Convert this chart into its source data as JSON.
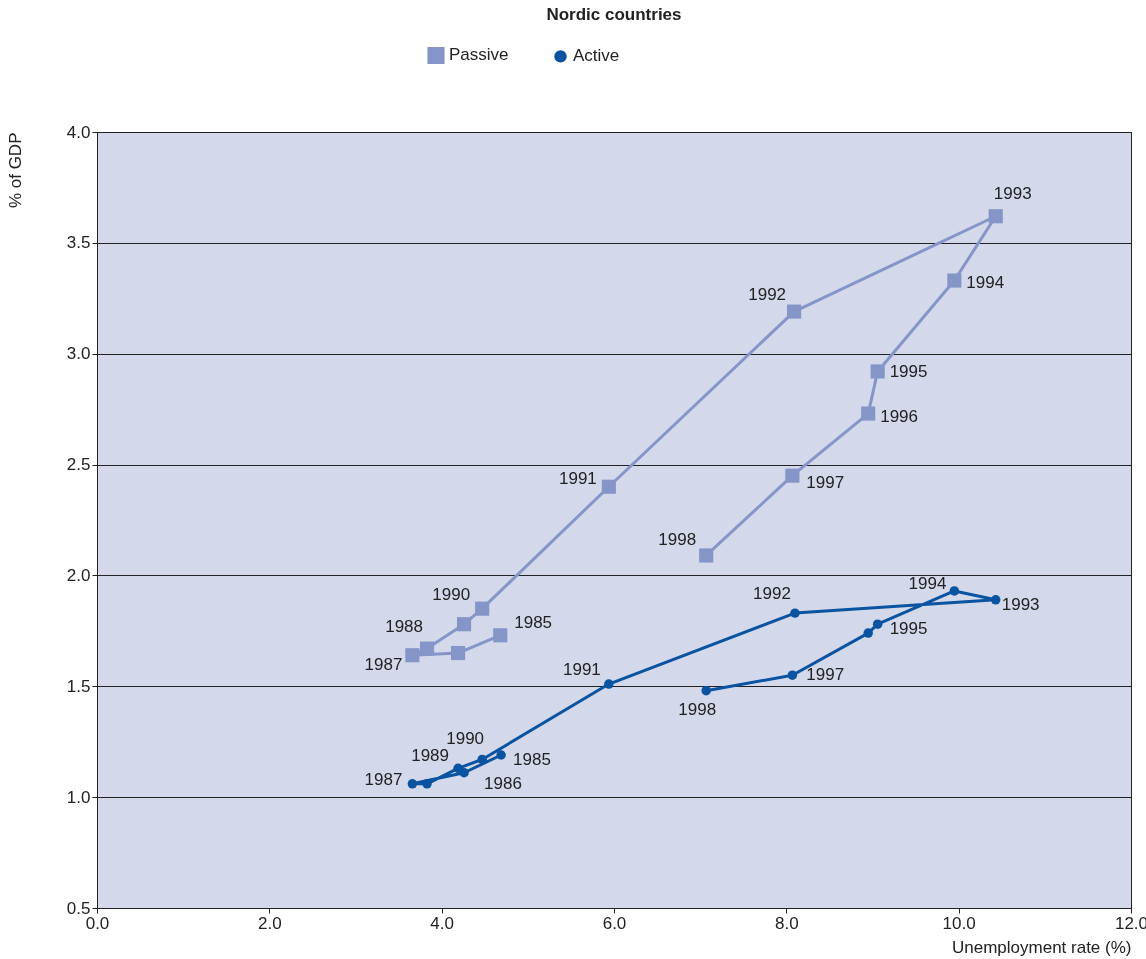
{
  "chart_data": {
    "type": "line",
    "title": "Nordic countries",
    "xlabel": "Unemployment rate (%)",
    "ylabel": "% of GDP",
    "xlim": [
      0,
      12
    ],
    "xticks": [
      {
        "value": 0,
        "label": "0.0"
      },
      {
        "value": 2,
        "label": "2.0"
      },
      {
        "value": 4,
        "label": "4.0"
      },
      {
        "value": 6,
        "label": "6.0"
      },
      {
        "value": 8,
        "label": "8.0"
      },
      {
        "value": 10,
        "label": "10.0"
      },
      {
        "value": 12,
        "label": "12.0"
      }
    ],
    "ylim": [
      0.5,
      4
    ],
    "yticks": [
      {
        "value": 0.5,
        "label": "0.5"
      },
      {
        "value": 1,
        "label": "1.0"
      },
      {
        "value": 1.5,
        "label": "1.5"
      },
      {
        "value": 2,
        "label": "2.0"
      },
      {
        "value": 2.5,
        "label": "2.5"
      },
      {
        "value": 3,
        "label": "3.0"
      },
      {
        "value": 3.5,
        "label": "3.5"
      },
      {
        "value": 4,
        "label": "4.0"
      }
    ],
    "grid": "y",
    "legend": "top",
    "series": [
      {
        "name": "Passive",
        "color": "#8595c8",
        "marker": "square",
        "x": [
          4.68,
          4.19,
          3.66,
          3.83,
          4.26,
          4.47,
          5.94,
          8.09,
          10.43,
          9.95,
          9.06,
          8.95,
          8.07,
          7.07
        ],
        "values": [
          1.73,
          1.65,
          1.64,
          1.67,
          1.78,
          1.85,
          2.4,
          3.19,
          3.62,
          3.33,
          2.92,
          2.73,
          2.45,
          2.09
        ]
      },
      {
        "name": "Active",
        "color": "#0a53a0",
        "marker": "circle",
        "x": [
          4.69,
          4.26,
          3.66,
          3.83,
          4.19,
          4.47,
          5.94,
          8.1,
          10.43,
          9.95,
          9.06,
          8.95,
          8.07,
          7.07
        ],
        "values": [
          1.19,
          1.11,
          1.06,
          1.06,
          1.13,
          1.17,
          1.51,
          1.83,
          1.89,
          1.93,
          1.78,
          1.74,
          1.55,
          1.48
        ]
      }
    ],
    "annotations": [
      {
        "text": "1985",
        "x": 4.68,
        "y": 1.73
      },
      {
        "text": "1987",
        "x": 3.66,
        "y": 1.64
      },
      {
        "text": "1988",
        "x": 3.83,
        "y": 1.67
      },
      {
        "text": "1990",
        "x": 4.47,
        "y": 1.85
      },
      {
        "text": "1991",
        "x": 5.94,
        "y": 2.4
      },
      {
        "text": "1992",
        "x": 8.09,
        "y": 3.19
      },
      {
        "text": "1993",
        "x": 10.43,
        "y": 3.62
      },
      {
        "text": "1994",
        "x": 9.95,
        "y": 3.33
      },
      {
        "text": "1995",
        "x": 9.06,
        "y": 2.92
      },
      {
        "text": "1996",
        "x": 8.95,
        "y": 2.73
      },
      {
        "text": "1997",
        "x": 8.07,
        "y": 2.45
      },
      {
        "text": "1998",
        "x": 7.07,
        "y": 2.09
      },
      {
        "text": "1985",
        "x": 4.69,
        "y": 1.19
      },
      {
        "text": "1986",
        "x": 4.26,
        "y": 1.11
      },
      {
        "text": "1987",
        "x": 3.66,
        "y": 1.06
      },
      {
        "text": "1989",
        "x": 4.19,
        "y": 1.13
      },
      {
        "text": "1990",
        "x": 4.47,
        "y": 1.17
      },
      {
        "text": "1991",
        "x": 5.94,
        "y": 1.51
      },
      {
        "text": "1992",
        "x": 8.1,
        "y": 1.83
      },
      {
        "text": "1993",
        "x": 10.43,
        "y": 1.89
      },
      {
        "text": "1994",
        "x": 9.95,
        "y": 1.93
      },
      {
        "text": "1995",
        "x": 9.06,
        "y": 1.78
      },
      {
        "text": "1997",
        "x": 8.07,
        "y": 1.55
      },
      {
        "text": "1998",
        "x": 7.07,
        "y": 1.48
      }
    ]
  }
}
